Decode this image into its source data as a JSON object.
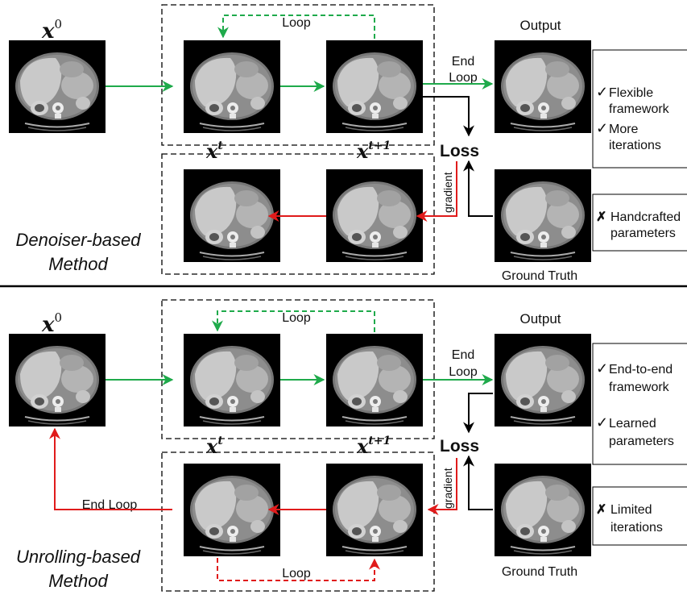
{
  "colors": {
    "forward": "#1faa4b",
    "backward": "#e01b1b",
    "neutral": "#000000"
  },
  "top": {
    "x0_base": "x",
    "x0_sup": "0",
    "loop_label": "Loop",
    "end_label_line1": "End",
    "end_label_line2": "Loop",
    "output_label": "Output",
    "loss_label": "Loss",
    "gradient_label": "gradient",
    "xt_base": "x",
    "xt_sup": "t",
    "xt1_base": "x",
    "xt1_sup": "t+1",
    "ground_truth_label": "Ground Truth",
    "method_line1": "Denoiser-based",
    "method_line2": "Method",
    "pros": [
      {
        "mark": "✓",
        "line1": "Flexible",
        "line2": "framework"
      },
      {
        "mark": "✓",
        "line1": "More",
        "line2": "iterations"
      }
    ],
    "cons": [
      {
        "mark": "✗",
        "line1": "Handcrafted",
        "line2": "parameters"
      }
    ]
  },
  "bottom": {
    "x0_base": "x",
    "x0_sup": "0",
    "loop_label_top": "Loop",
    "loop_label_bottom": "Loop",
    "end_label_line1": "End",
    "end_label_line2": "Loop",
    "end_loop_label": "End Loop",
    "output_label": "Output",
    "loss_label": "Loss",
    "gradient_label": "gradient",
    "xt_base": "x",
    "xt_sup": "t",
    "xt1_base": "x",
    "xt1_sup": "t+1",
    "ground_truth_label": "Ground Truth",
    "method_line1": "Unrolling-based",
    "method_line2": "Method",
    "pros": [
      {
        "mark": "✓",
        "line1": "End-to-end",
        "line2": "framework"
      },
      {
        "mark": "✓",
        "line1": "Learned",
        "line2": "parameters"
      }
    ],
    "cons": [
      {
        "mark": "✗",
        "line1": "Limited",
        "line2": "iterations"
      }
    ]
  }
}
